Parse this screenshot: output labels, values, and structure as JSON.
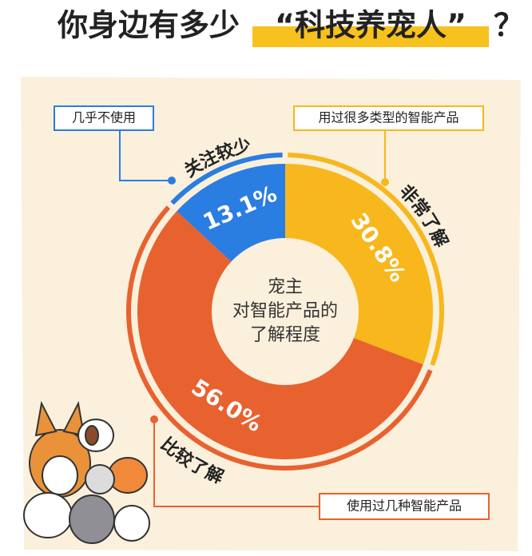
{
  "chart_data": {
    "type": "donut",
    "title": [
      "你身边有多少",
      "“科技养宠人”",
      "？"
    ],
    "center_label": [
      "宠主",
      "对智能产品的",
      "了解程度"
    ],
    "categories": [
      "非常了解",
      "比较了解",
      "关注较少"
    ],
    "values": [
      30.8,
      56.0,
      13.1
    ],
    "value_labels": [
      "30.8%",
      "56.0%",
      "13.1%"
    ],
    "colors": [
      "#f7b71d",
      "#e8622f",
      "#2a7de1"
    ],
    "callouts": [
      "用过很多类型的智能产品",
      "使用过几种智能产品",
      "几乎不使用"
    ]
  }
}
